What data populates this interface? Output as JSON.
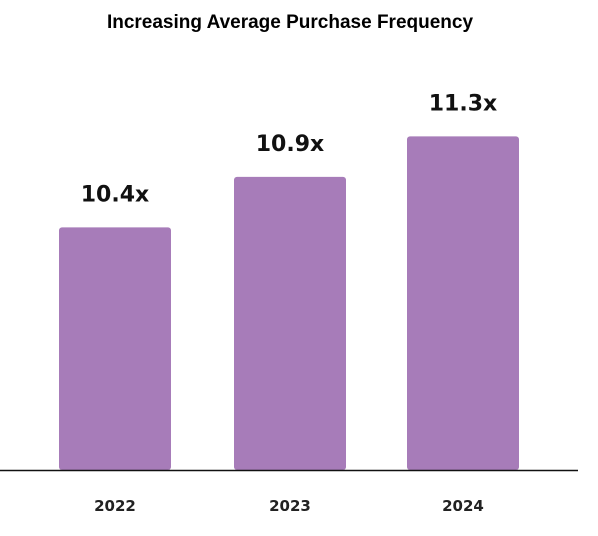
{
  "chart_data": {
    "type": "bar",
    "title": "Increasing Average Purchase Frequency",
    "categories": [
      "2022",
      "2023",
      "2024"
    ],
    "values": [
      10.4,
      10.9,
      11.3
    ],
    "data_labels": [
      "10.4x",
      "10.9x",
      "11.3x"
    ],
    "xlabel": "",
    "ylabel": "",
    "ylim": [
      8.0,
      11.7
    ],
    "grid": false,
    "legend": "none",
    "colors": {
      "bar": "#a77cb9",
      "axis": "#111111"
    }
  }
}
